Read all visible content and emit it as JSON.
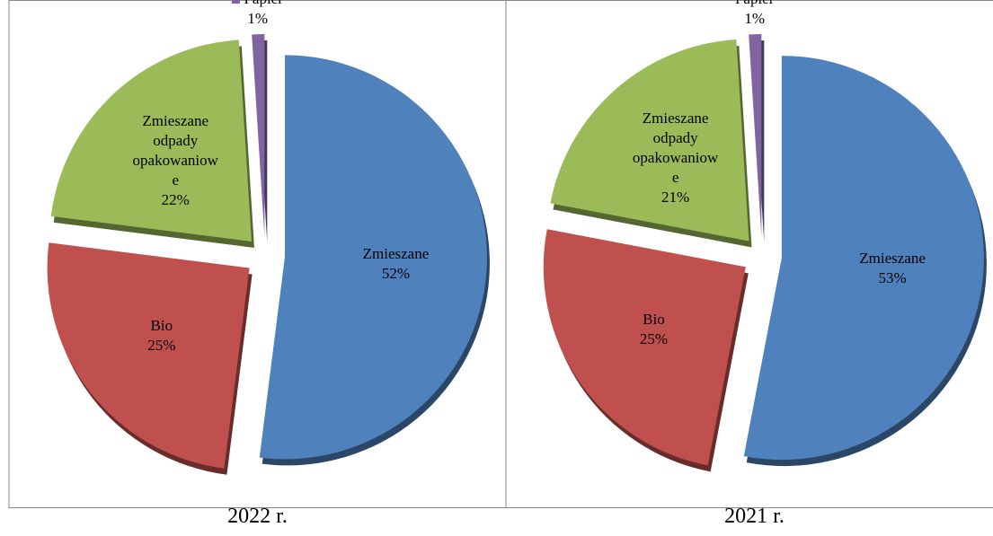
{
  "chart_data": [
    {
      "type": "pie",
      "caption": "2022 r.",
      "categories": [
        "Zmieszane",
        "Bio",
        "Zmieszane odpady opakowaniowe",
        "Papier"
      ],
      "values": [
        52,
        25,
        22,
        1
      ],
      "value_labels": [
        "52%",
        "25%",
        "22%",
        "1%"
      ],
      "colors": [
        "#4f81bd",
        "#c0504d",
        "#9bbb59",
        "#8064a2"
      ]
    },
    {
      "type": "pie",
      "caption": "2021 r.",
      "categories": [
        "Zmieszane",
        "Bio",
        "Zmieszane odpady opakowaniowe",
        "Papier"
      ],
      "values": [
        53,
        25,
        21,
        1
      ],
      "value_labels": [
        "53%",
        "25%",
        "21%",
        "1%"
      ],
      "colors": [
        "#4f81bd",
        "#c0504d",
        "#9bbb59",
        "#8064a2"
      ]
    }
  ]
}
